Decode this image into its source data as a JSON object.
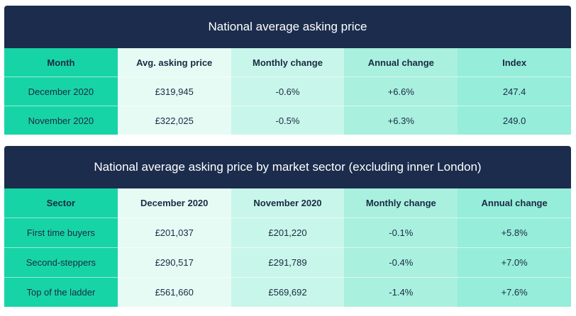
{
  "table1": {
    "title": "National average asking price",
    "headers": [
      "Month",
      "Avg. asking price",
      "Monthly change",
      "Annual change",
      "Index"
    ],
    "rows": [
      [
        "December 2020",
        "£319,945",
        "-0.6%",
        "+6.6%",
        "247.4"
      ],
      [
        "November 2020",
        "£322,025",
        "-0.5%",
        "+6.3%",
        "249.0"
      ]
    ]
  },
  "table2": {
    "title": "National average asking price by market sector (excluding inner London)",
    "headers": [
      "Sector",
      "December 2020",
      "November 2020",
      "Monthly change",
      "Annual change"
    ],
    "rows": [
      [
        "First time buyers",
        "£201,037",
        "£201,220",
        "-0.1%",
        "+5.8%"
      ],
      [
        "Second-steppers",
        "£290,517",
        "£291,789",
        "-0.4%",
        "+7.0%"
      ],
      [
        "Top of the ladder",
        "£561,660",
        "£569,692",
        "-1.4%",
        "+7.6%"
      ]
    ]
  },
  "colors": {
    "title_bg": "#1b2c4c",
    "col1": "#17d4a6",
    "col2": "#e6fbf4",
    "col3": "#c9f6ea",
    "col4": "#a9f0df",
    "col5": "#96edd9"
  }
}
